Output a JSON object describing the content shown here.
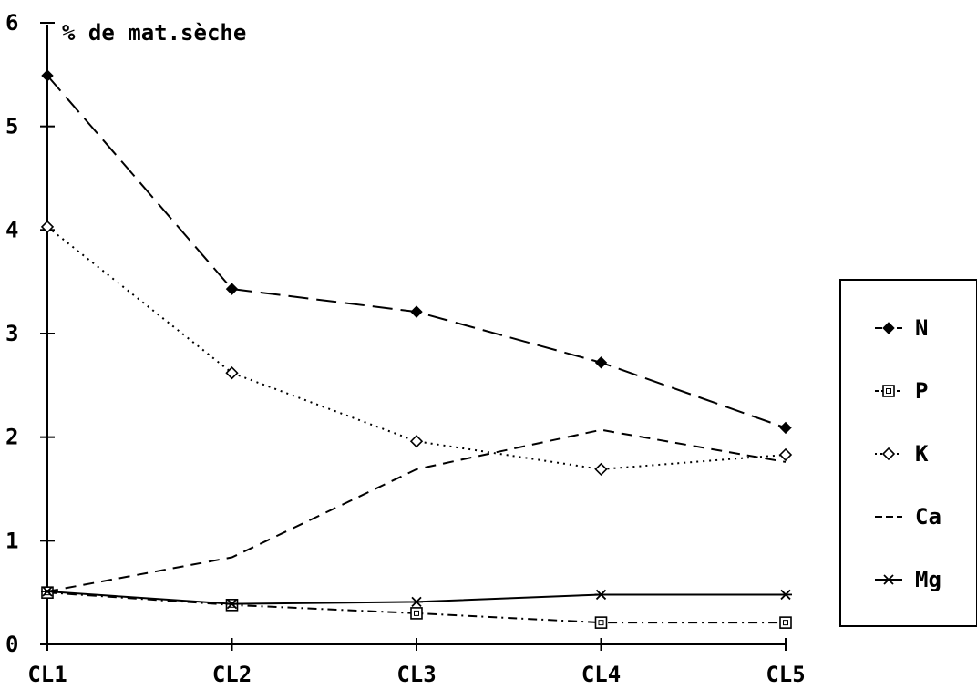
{
  "chart_data": {
    "type": "line",
    "title": "",
    "xlabel": "",
    "ylabel": "% de mat.sèche",
    "categories": [
      "CL1",
      "CL2",
      "CL3",
      "CL4",
      "CL5"
    ],
    "yticks": [
      "0",
      "1",
      "2",
      "3",
      "4",
      "5",
      "6"
    ],
    "ylim": [
      0,
      6
    ],
    "grid": false,
    "legend_position": "right",
    "series": [
      {
        "name": "N",
        "values": [
          5.49,
          3.43,
          3.21,
          2.72,
          2.09
        ],
        "marker": "filled-diamond",
        "dash": "long-dash"
      },
      {
        "name": "P",
        "values": [
          0.5,
          0.38,
          0.3,
          0.21,
          0.21
        ],
        "marker": "square",
        "dash": "dash-dot"
      },
      {
        "name": "K",
        "values": [
          4.03,
          2.62,
          1.96,
          1.69,
          1.83
        ],
        "marker": "open-diamond",
        "dash": "dotted"
      },
      {
        "name": "Ca",
        "values": [
          0.51,
          0.84,
          1.69,
          2.07,
          1.76
        ],
        "marker": "none",
        "dash": "dash"
      },
      {
        "name": "Mg",
        "values": [
          0.51,
          0.39,
          0.41,
          0.48,
          0.48
        ],
        "marker": "star",
        "dash": "solid"
      }
    ]
  }
}
